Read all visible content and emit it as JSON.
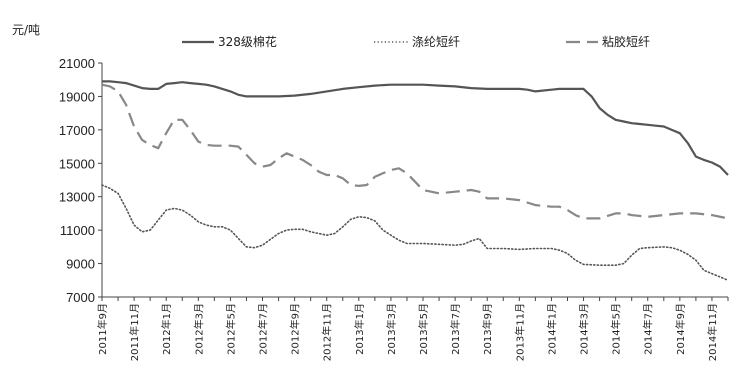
{
  "chart_data": {
    "type": "line",
    "ylabel": "元/吨",
    "ylim": [
      7000,
      21000
    ],
    "yticks": [
      7000,
      9000,
      11000,
      13000,
      15000,
      17000,
      19000,
      21000
    ],
    "grid": false,
    "legend_position": "top",
    "x_range": [
      0,
      39
    ],
    "xticks": [
      {
        "x": 0,
        "label": "2011年9月"
      },
      {
        "x": 2,
        "label": "2011年11月"
      },
      {
        "x": 4,
        "label": "2012年1月"
      },
      {
        "x": 6,
        "label": "2012年3月"
      },
      {
        "x": 8,
        "label": "2012年5月"
      },
      {
        "x": 10,
        "label": "2012年7月"
      },
      {
        "x": 12,
        "label": "2012年9月"
      },
      {
        "x": 14,
        "label": "2012年11月"
      },
      {
        "x": 16,
        "label": "2013年1月"
      },
      {
        "x": 18,
        "label": "2013年3月"
      },
      {
        "x": 20,
        "label": "2013年5月"
      },
      {
        "x": 22,
        "label": "2013年7月"
      },
      {
        "x": 24,
        "label": "2013年9月"
      },
      {
        "x": 26,
        "label": "2013年11月"
      },
      {
        "x": 28,
        "label": "2014年1月"
      },
      {
        "x": 30,
        "label": "2014年3月"
      },
      {
        "x": 32,
        "label": "2014年5月"
      },
      {
        "x": 34,
        "label": "2014年7月"
      },
      {
        "x": 36,
        "label": "2014年9月"
      },
      {
        "x": 38,
        "label": "2014年11月"
      }
    ],
    "series": [
      {
        "name": "328级棉花",
        "style": "solid",
        "color": "#555555",
        "x": [
          0,
          0.5,
          1,
          1.5,
          2,
          2.5,
          3,
          3.5,
          4,
          4.5,
          5,
          5.5,
          6,
          6.5,
          7,
          7.5,
          8,
          8.5,
          9,
          9.5,
          10,
          11,
          12,
          13,
          14,
          15,
          16,
          17,
          18,
          19,
          20,
          21,
          22,
          23,
          24,
          25,
          26,
          26.5,
          27,
          28,
          28.5,
          29,
          29.5,
          30,
          30.5,
          31,
          31.5,
          32,
          32.5,
          33,
          33.5,
          34,
          34.5,
          35,
          35.5,
          36,
          36.5,
          37,
          37.5,
          38,
          38.5,
          39
        ],
        "values": [
          19900,
          19900,
          19850,
          19800,
          19650,
          19500,
          19450,
          19450,
          19750,
          19800,
          19850,
          19800,
          19750,
          19700,
          19600,
          19450,
          19300,
          19100,
          19000,
          19000,
          19000,
          19000,
          19050,
          19150,
          19300,
          19450,
          19550,
          19650,
          19700,
          19700,
          19700,
          19650,
          19600,
          19500,
          19450,
          19450,
          19450,
          19400,
          19300,
          19400,
          19450,
          19450,
          19450,
          19450,
          19000,
          18300,
          17900,
          17600,
          17500,
          17400,
          17350,
          17300,
          17250,
          17200,
          17000,
          16800,
          16200,
          15400,
          15200,
          15050,
          14800,
          14300
        ]
      },
      {
        "name": "涤纶短纤",
        "style": "dotted",
        "color": "#555555",
        "x": [
          0,
          0.5,
          1,
          1.5,
          2,
          2.5,
          3,
          3.5,
          4,
          4.5,
          5,
          5.5,
          6,
          6.5,
          7,
          7.5,
          8,
          8.5,
          9,
          9.5,
          10,
          10.5,
          11,
          11.5,
          12,
          12.5,
          13,
          13.5,
          14,
          14.5,
          15,
          15.5,
          16,
          16.5,
          17,
          17.5,
          18,
          18.5,
          19,
          20,
          21,
          22,
          22.5,
          23,
          23.5,
          24,
          25,
          26,
          27,
          28,
          28.5,
          29,
          29.5,
          30,
          31,
          32,
          32.5,
          33,
          33.5,
          34,
          35,
          35.5,
          36,
          36.5,
          37,
          37.5,
          38,
          38.5,
          39
        ],
        "values": [
          13700,
          13500,
          13200,
          12300,
          11300,
          10900,
          11000,
          11600,
          12200,
          12300,
          12200,
          11900,
          11500,
          11300,
          11200,
          11200,
          11000,
          10500,
          10000,
          9950,
          10100,
          10450,
          10800,
          11000,
          11050,
          11050,
          10900,
          10800,
          10700,
          10800,
          11200,
          11650,
          11800,
          11750,
          11550,
          11000,
          10700,
          10400,
          10200,
          10200,
          10150,
          10100,
          10150,
          10350,
          10500,
          9900,
          9900,
          9850,
          9900,
          9900,
          9800,
          9600,
          9200,
          8950,
          8900,
          8900,
          9000,
          9500,
          9900,
          9950,
          10000,
          9950,
          9800,
          9550,
          9200,
          8600,
          8400,
          8200,
          8000
        ]
      },
      {
        "name": "粘胶短纤",
        "style": "dashed",
        "color": "#888888",
        "x": [
          0,
          0.5,
          1,
          1.5,
          2,
          2.5,
          3,
          3.5,
          4,
          4.5,
          5,
          5.5,
          6,
          6.5,
          7,
          7.5,
          8,
          8.5,
          9,
          9.5,
          10,
          10.5,
          11,
          11.5,
          12,
          12.5,
          13,
          13.5,
          14,
          14.5,
          15,
          15.5,
          16,
          16.5,
          17,
          17.5,
          18,
          18.5,
          19,
          20,
          21,
          22,
          22.5,
          23,
          23.5,
          24,
          25,
          26,
          27,
          28,
          28.5,
          29,
          29.5,
          30,
          31,
          32,
          32.5,
          33,
          34,
          35,
          36,
          37,
          38,
          39
        ],
        "values": [
          19700,
          19600,
          19300,
          18500,
          17200,
          16400,
          16100,
          15900,
          16800,
          17600,
          17600,
          17000,
          16300,
          16100,
          16050,
          16050,
          16050,
          16000,
          15500,
          15000,
          14800,
          14900,
          15300,
          15600,
          15400,
          15200,
          14900,
          14500,
          14300,
          14300,
          14100,
          13700,
          13650,
          13700,
          14200,
          14400,
          14600,
          14700,
          14400,
          13400,
          13200,
          13300,
          13350,
          13400,
          13300,
          12900,
          12900,
          12800,
          12500,
          12400,
          12400,
          12200,
          11900,
          11700,
          11700,
          12000,
          12000,
          11900,
          11800,
          11900,
          12000,
          12000,
          11900,
          11700
        ]
      }
    ]
  }
}
